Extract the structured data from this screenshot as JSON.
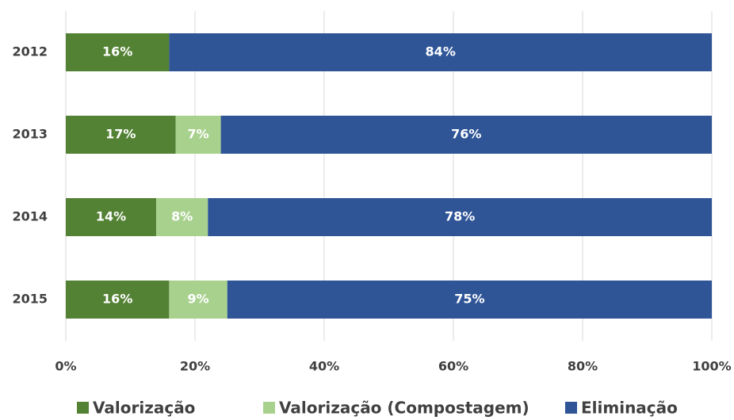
{
  "chart_data": {
    "type": "stacked-barh",
    "categories": [
      "2012",
      "2013",
      "2014",
      "2015"
    ],
    "series": [
      {
        "name": "Valorização",
        "color": "#548235",
        "values": [
          16,
          17,
          14,
          16
        ],
        "value_labels": [
          "16%",
          "17%",
          "14%",
          "16%"
        ]
      },
      {
        "name": "Valorização (Compostagem)",
        "color": "#a9d18e",
        "values": [
          null,
          7,
          8,
          9
        ],
        "value_labels": [
          null,
          "7%",
          "8%",
          "9%"
        ]
      },
      {
        "name": "Eliminação",
        "color": "#2f5597",
        "values": [
          84,
          76,
          78,
          75
        ],
        "value_labels": [
          "84%",
          "76%",
          "78%",
          "75%"
        ]
      }
    ],
    "xlim": [
      0,
      100
    ],
    "xticks": [
      {
        "value": 0,
        "label": "0%"
      },
      {
        "value": 20,
        "label": "20%"
      },
      {
        "value": 40,
        "label": "40%"
      },
      {
        "value": 60,
        "label": "60%"
      },
      {
        "value": 80,
        "label": "80%"
      },
      {
        "value": 100,
        "label": "100%"
      }
    ],
    "grid": true,
    "legend": "bottom"
  }
}
